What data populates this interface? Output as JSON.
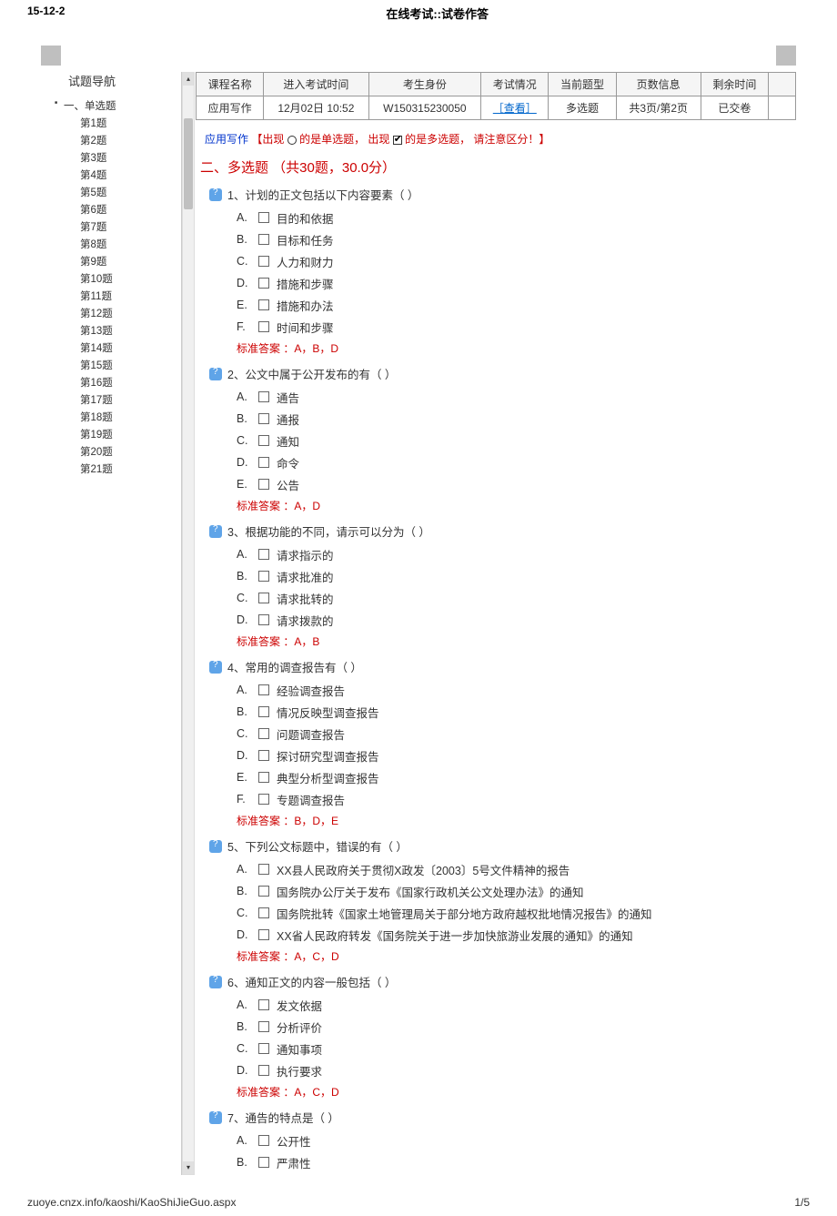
{
  "header": {
    "date": "15-12-2",
    "page_title": "在线考试::试卷作答"
  },
  "sidebar": {
    "title": "试题导航",
    "section_label": "一、单选题",
    "items": [
      "第1题",
      "第2题",
      "第3题",
      "第4题",
      "第5题",
      "第6题",
      "第7题",
      "第8题",
      "第9题",
      "第10题",
      "第11题",
      "第12题",
      "第13题",
      "第14题",
      "第15题",
      "第16题",
      "第17题",
      "第18题",
      "第19题",
      "第20题",
      "第21题"
    ]
  },
  "info": {
    "headers": {
      "course": "课程名称",
      "enter": "进入考试时间",
      "cid": "考生身份",
      "status": "考试情况",
      "type": "当前题型",
      "page": "页数信息",
      "remain": "剩余时间"
    },
    "values": {
      "course": "应用写作",
      "enter": "12月02日 10:52",
      "cid": "W150315230050",
      "status": "［查看］",
      "type": "多选题",
      "page": "共3页/第2页",
      "remain": "已交卷"
    }
  },
  "note": {
    "course": "应用写作",
    "part1": "【出现",
    "mid": "的是单选题， 出现",
    "tail": "的是多选题， 请注意区分！】"
  },
  "section": "二、多选题 （共30题，30.0分）",
  "questions": [
    {
      "title": "1、计划的正文包括以下内容要素（ ）",
      "opts": [
        [
          "A.",
          "目的和依据"
        ],
        [
          "B.",
          "目标和任务"
        ],
        [
          "C.",
          "人力和财力"
        ],
        [
          "D.",
          "措施和步骤"
        ],
        [
          "E.",
          "措施和办法"
        ],
        [
          "F.",
          "时间和步骤"
        ]
      ],
      "answer": "标准答案 ：A，B，D"
    },
    {
      "title": "2、公文中属于公开发布的有（ ）",
      "opts": [
        [
          "A.",
          "通告"
        ],
        [
          "B.",
          "通报"
        ],
        [
          "C.",
          "通知"
        ],
        [
          "D.",
          "命令"
        ],
        [
          "E.",
          "公告"
        ]
      ],
      "answer": "标准答案 ：A，D"
    },
    {
      "title": "3、根据功能的不同，请示可以分为（ ）",
      "opts": [
        [
          "A.",
          "请求指示的"
        ],
        [
          "B.",
          "请求批准的"
        ],
        [
          "C.",
          "请求批转的"
        ],
        [
          "D.",
          "请求拨款的"
        ]
      ],
      "answer": "标准答案 ：A，B"
    },
    {
      "title": "4、常用的调查报告有（ ）",
      "opts": [
        [
          "A.",
          "经验调查报告"
        ],
        [
          "B.",
          "情况反映型调查报告"
        ],
        [
          "C.",
          "问题调查报告"
        ],
        [
          "D.",
          "探讨研究型调查报告"
        ],
        [
          "E.",
          "典型分析型调查报告"
        ],
        [
          "F.",
          "专题调查报告"
        ]
      ],
      "answer": "标准答案 ：B，D，E"
    },
    {
      "title": "5、下列公文标题中，错误的有（ ）",
      "opts": [
        [
          "A.",
          "XX县人民政府关于贯彻X政发〔2003〕5号文件精神的报告"
        ],
        [
          "B.",
          "国务院办公厅关于发布《国家行政机关公文处理办法》的通知"
        ],
        [
          "C.",
          "国务院批转《国家土地管理局关于部分地方政府越权批地情况报告》的通知"
        ],
        [
          "D.",
          "XX省人民政府转发《国务院关于进一步加快旅游业发展的通知》的通知"
        ]
      ],
      "answer": "标准答案 ：A，C，D"
    },
    {
      "title": "6、通知正文的内容一般包括（ ）",
      "opts": [
        [
          "A.",
          "发文依据"
        ],
        [
          "B.",
          "分析评价"
        ],
        [
          "C.",
          "通知事项"
        ],
        [
          "D.",
          "执行要求"
        ]
      ],
      "answer": "标准答案 ：A，C，D"
    },
    {
      "title": "7、通告的特点是（ ）",
      "opts": [
        [
          "A.",
          "公开性"
        ],
        [
          "B.",
          "严肃性"
        ]
      ],
      "answer": ""
    }
  ],
  "footer": {
    "url": "zuoye.cnzx.info/kaoshi/KaoShiJieGuo.aspx",
    "page": "1/5"
  }
}
